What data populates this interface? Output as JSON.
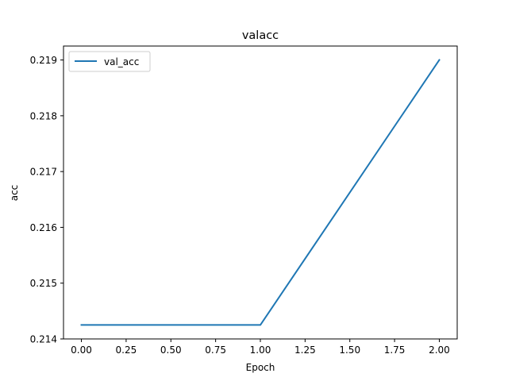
{
  "chart_data": {
    "type": "line",
    "title": "valacc",
    "xlabel": "Epoch",
    "ylabel": "acc",
    "xlim": [
      -0.1,
      2.1
    ],
    "ylim": [
      0.214,
      0.21925
    ],
    "x_ticks": [
      0.0,
      0.25,
      0.5,
      0.75,
      1.0,
      1.25,
      1.5,
      1.75,
      2.0
    ],
    "x_tick_labels": [
      "0.00",
      "0.25",
      "0.50",
      "0.75",
      "1.00",
      "1.25",
      "1.50",
      "1.75",
      "2.00"
    ],
    "y_ticks": [
      0.214,
      0.215,
      0.216,
      0.217,
      0.218,
      0.219
    ],
    "y_tick_labels": [
      "0.214",
      "0.215",
      "0.216",
      "0.217",
      "0.218",
      "0.219"
    ],
    "grid": false,
    "legend_position": "top-left",
    "series": [
      {
        "name": "val_acc",
        "color": "#1f77b4",
        "x": [
          0,
          1,
          2
        ],
        "values": [
          0.21425,
          0.21425,
          0.219
        ]
      }
    ]
  }
}
